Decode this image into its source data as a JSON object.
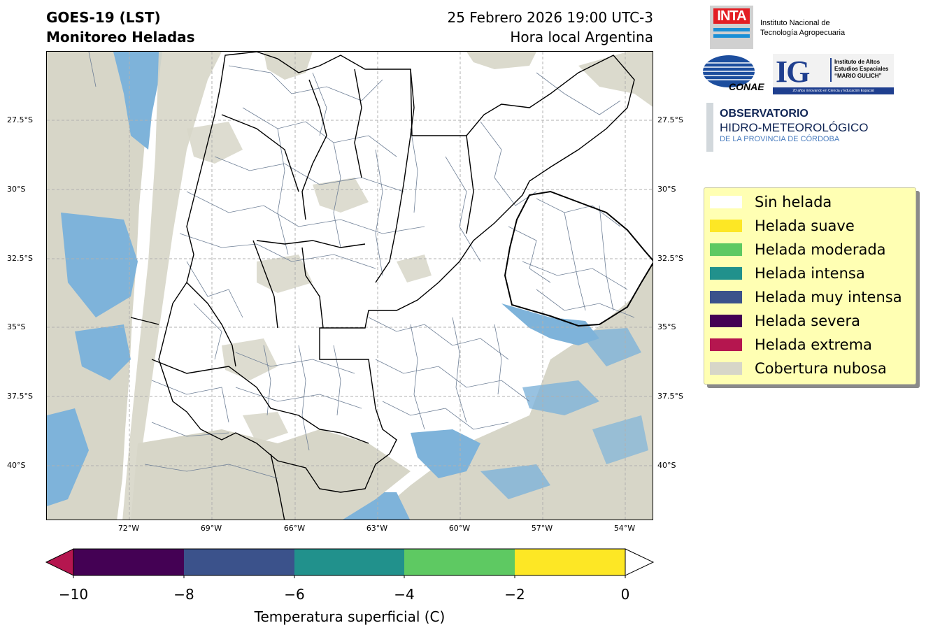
{
  "header": {
    "title_line1": "GOES-19 (LST)",
    "title_line2": "Monitoreo Heladas",
    "date_line1": "25 Febrero 2026 19:00 UTC-3",
    "date_line2": "Hora local Argentina"
  },
  "map": {
    "lat_labels": [
      "27.5°S",
      "30°S",
      "32.5°S",
      "35°S",
      "37.5°S",
      "40°S"
    ],
    "lon_labels": [
      "72°W",
      "69°W",
      "66°W",
      "63°W",
      "60°W",
      "57°W",
      "54°W"
    ],
    "colors": {
      "cloud": "#d7d6c8",
      "water": "#7eb3da",
      "land": "#ffffff",
      "border": "#000000",
      "department": "#6e7f96",
      "grid": "#b0b0b0"
    }
  },
  "legend": {
    "items": [
      {
        "label": "Sin helada",
        "color": "#ffffff"
      },
      {
        "label": "Helada suave",
        "color": "#fde725"
      },
      {
        "label": "Helada moderada",
        "color": "#5ec962"
      },
      {
        "label": "Helada intensa",
        "color": "#21918c"
      },
      {
        "label": "Helada muy intensa",
        "color": "#3b528b"
      },
      {
        "label": "Helada severa",
        "color": "#440154"
      },
      {
        "label": "Helada extrema",
        "color": "#b5164f"
      },
      {
        "label": "Cobertura nubosa",
        "color": "#d7d6c8"
      }
    ]
  },
  "colorbar": {
    "title": "Temperatura superficial (C)",
    "ticks": [
      "−10",
      "−8",
      "−6",
      "−4",
      "−2",
      "0"
    ],
    "segments": [
      {
        "color": "#440154"
      },
      {
        "color": "#3b528b"
      },
      {
        "color": "#21918c"
      },
      {
        "color": "#5ec962"
      },
      {
        "color": "#fde725"
      }
    ],
    "under_color": "#b5164f",
    "over_color": "#ffffff"
  },
  "logos": {
    "inta": {
      "mark": "INTA",
      "line1": "Instituto Nacional de",
      "line2": "Tecnología Agropecuaria"
    },
    "conae": {
      "mark": "CONAE"
    },
    "ig": {
      "mark": "IG",
      "line1": "Instituto de Altos",
      "line2": "Estudios Espaciales",
      "line3": "“MARIO GULICH”",
      "tagline": "20 años innovando en Ciencia y Educación Espacial"
    },
    "observatorio": {
      "line1": "OBSERVATORIO",
      "line2": "HIDRO-METEOROLÓGICO",
      "line3": "DE LA PROVINCIA DE CÓRDOBA"
    }
  }
}
